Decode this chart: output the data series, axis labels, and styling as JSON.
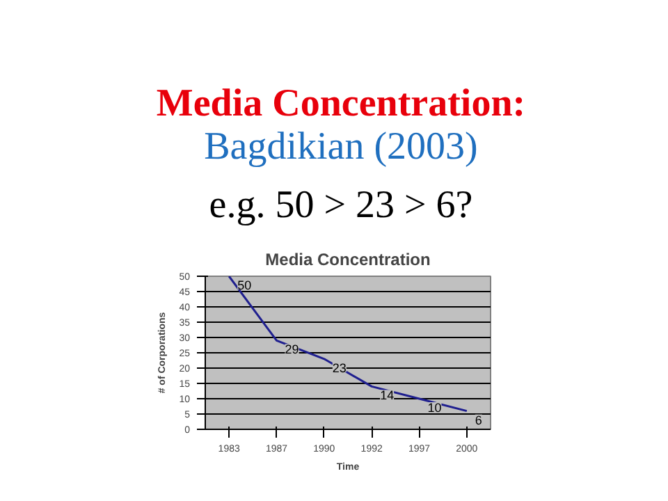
{
  "chart_data": {
    "type": "line",
    "title": "Media Concentration",
    "annotations": [
      "Media Concentration: Bagdikian (2003)",
      "e.g. 50 > 23 > 6?"
    ],
    "xlabel": "Time",
    "ylabel": "# of Corporations",
    "categories": [
      "1983",
      "1987",
      "1990",
      "1992",
      "1997",
      "2000"
    ],
    "series": [
      {
        "color": "#1f1f8f",
        "values": [
          50,
          29,
          23,
          14,
          10,
          6
        ]
      }
    ],
    "ylim": [
      0,
      50
    ],
    "yticks": [
      0,
      5,
      10,
      15,
      20,
      25,
      30,
      35,
      40,
      45,
      50
    ],
    "grid": "y",
    "data_labels": true,
    "marker": "none"
  }
}
